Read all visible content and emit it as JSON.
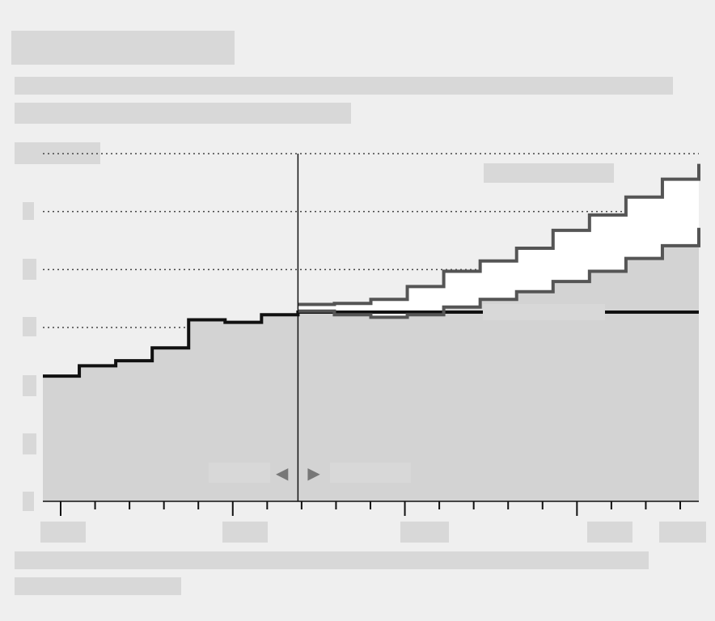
{
  "chart_data": {
    "type": "line",
    "title": "",
    "xlabel": "",
    "ylabel": "",
    "x_tick_count": 18,
    "y_gridline_count": 6,
    "divider_x": 7,
    "arrows": [
      "◀",
      "▶"
    ],
    "series": [
      {
        "id": "observed",
        "color": "#111111",
        "x": [
          0,
          1,
          2,
          3,
          4,
          5,
          6,
          7
        ],
        "values": [
          2.45,
          2.65,
          2.75,
          3.0,
          3.55,
          3.5,
          3.65,
          3.7
        ]
      },
      {
        "id": "upper",
        "color": "#555555",
        "x": [
          7,
          8,
          9,
          10,
          11,
          12,
          13,
          14,
          15,
          16,
          17,
          18
        ],
        "values": [
          3.85,
          3.87,
          3.95,
          4.2,
          4.5,
          4.7,
          4.95,
          5.3,
          5.6,
          5.95,
          6.3,
          6.6
        ]
      },
      {
        "id": "lower",
        "color": "#555555",
        "x": [
          7,
          8,
          9,
          10,
          11,
          12,
          13,
          14,
          15,
          16,
          17,
          18
        ],
        "values": [
          3.72,
          3.65,
          3.6,
          3.65,
          3.8,
          3.95,
          4.1,
          4.3,
          4.5,
          4.75,
          5.0,
          5.35
        ]
      }
    ],
    "ylim": [
      0,
      6.8
    ],
    "xlim": [
      0,
      18
    ]
  }
}
